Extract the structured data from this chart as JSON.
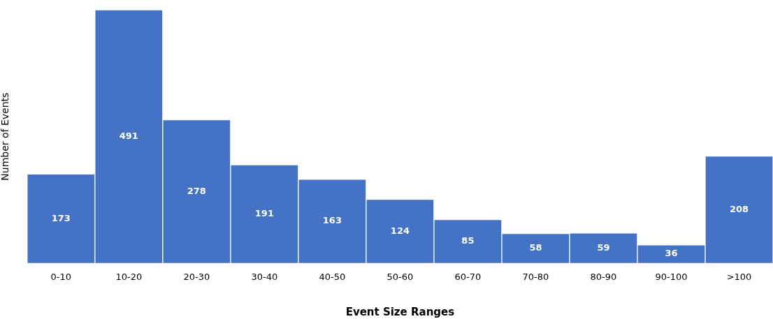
{
  "chart_data": {
    "type": "bar",
    "xlabel": "Event Size Ranges",
    "ylabel": "Number of Events",
    "categories": [
      "0-10",
      "10-20",
      "20-30",
      "30-40",
      "40-50",
      "50-60",
      "60-70",
      "70-80",
      "80-90",
      "90-100",
      ">100"
    ],
    "values": [
      173,
      491,
      278,
      191,
      163,
      124,
      85,
      58,
      59,
      36,
      208
    ],
    "color": "#4472c4",
    "data_labels": true,
    "grid": false,
    "legend": false,
    "tick_labels": "x"
  }
}
